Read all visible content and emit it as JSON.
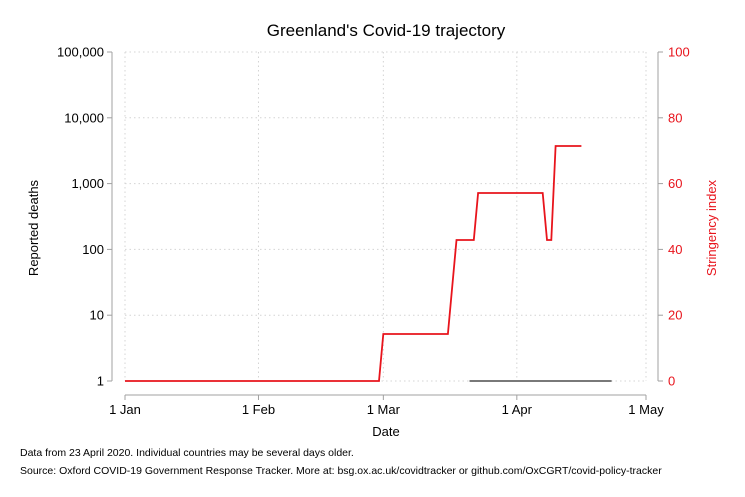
{
  "chart_data": {
    "type": "line",
    "title": "Greenland's Covid-19 trajectory",
    "xlabel": "Date",
    "ylabel": "Reported deaths",
    "y2label": "Stringency index",
    "x_ticks": [
      "1 Jan",
      "1 Feb",
      "1 Mar",
      "1 Apr",
      "1 May"
    ],
    "x_range": [
      "2020-01-01",
      "2020-05-01"
    ],
    "y_scale": "log",
    "y_ticks": [
      "1",
      "10",
      "100",
      "1,000",
      "10,000",
      "100,000"
    ],
    "ylim": [
      1,
      100000
    ],
    "y2_ticks": [
      "0",
      "20",
      "40",
      "60",
      "80",
      "100"
    ],
    "y2lim": [
      0,
      100
    ],
    "grid": true,
    "colors": {
      "deaths": "#4d4d4d",
      "stringency": "#e8141c",
      "right_axis": "#e8141c"
    },
    "series": [
      {
        "axis": "left",
        "points": [
          {
            "x": "2020-03-21",
            "y": 1
          },
          {
            "x": "2020-04-23",
            "y": 1
          }
        ]
      },
      {
        "axis": "right",
        "points": [
          {
            "x": "2020-01-01",
            "y": 0
          },
          {
            "x": "2020-02-29",
            "y": 0
          },
          {
            "x": "2020-03-01",
            "y": 14.29
          },
          {
            "x": "2020-03-16",
            "y": 14.29
          },
          {
            "x": "2020-03-18",
            "y": 42.86
          },
          {
            "x": "2020-03-22",
            "y": 42.86
          },
          {
            "x": "2020-03-23",
            "y": 57.14
          },
          {
            "x": "2020-04-07",
            "y": 57.14
          },
          {
            "x": "2020-04-08",
            "y": 42.86
          },
          {
            "x": "2020-04-09",
            "y": 42.86
          },
          {
            "x": "2020-04-10",
            "y": 71.43
          },
          {
            "x": "2020-04-16",
            "y": 71.43
          }
        ]
      }
    ]
  },
  "notes": {
    "line1": "Data from 23 April 2020. Individual countries may be several days older.",
    "line2": "Source: Oxford COVID-19 Government Response Tracker. More at: bsg.ox.ac.uk/covidtracker or github.com/OxCGRT/covid-policy-tracker"
  }
}
